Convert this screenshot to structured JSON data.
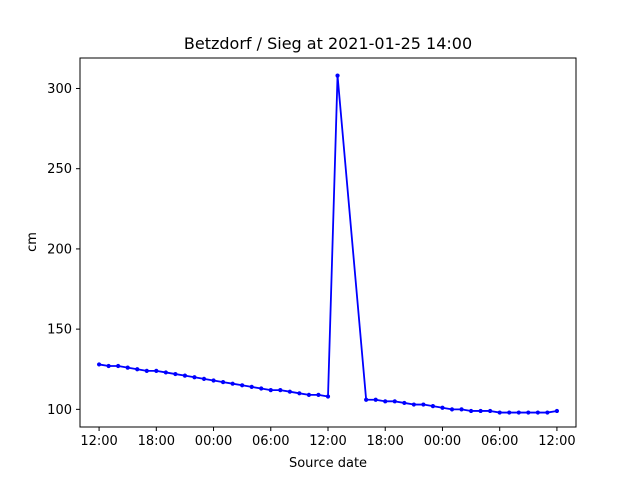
{
  "chart_data": {
    "type": "line",
    "title": "Betzdorf / Sieg at 2021-01-25 14:00",
    "xlabel": "Source date",
    "ylabel": "cm",
    "x_tick_labels": [
      "12:00",
      "18:00",
      "00:00",
      "06:00",
      "12:00",
      "18:00",
      "00:00",
      "06:00",
      "12:00"
    ],
    "y_ticks": [
      100,
      150,
      200,
      250,
      300
    ],
    "xlim_hours": [
      -2,
      50
    ],
    "ylim": [
      89,
      319
    ],
    "grid": false,
    "series": [
      {
        "color": "#0000ff",
        "marker": "dot",
        "x_hours": [
          0,
          1,
          2,
          3,
          4,
          5,
          6,
          7,
          8,
          9,
          10,
          11,
          12,
          13,
          14,
          15,
          16,
          17,
          18,
          19,
          20,
          21,
          22,
          23,
          24,
          25,
          26,
          27,
          28,
          29,
          30,
          31,
          32,
          33,
          34,
          35,
          36,
          37,
          38,
          39,
          40,
          41,
          42,
          43,
          44,
          45,
          46,
          47,
          48
        ],
        "values": [
          128,
          127,
          127,
          126,
          125,
          124,
          124,
          123,
          122,
          121,
          120,
          119,
          118,
          117,
          116,
          115,
          114,
          113,
          112,
          112,
          111,
          110,
          109,
          109,
          108,
          308,
          null,
          null,
          106,
          106,
          105,
          105,
          104,
          103,
          103,
          102,
          101,
          100,
          100,
          99,
          99,
          99,
          98,
          98,
          98,
          98,
          98,
          98,
          99
        ]
      }
    ]
  }
}
